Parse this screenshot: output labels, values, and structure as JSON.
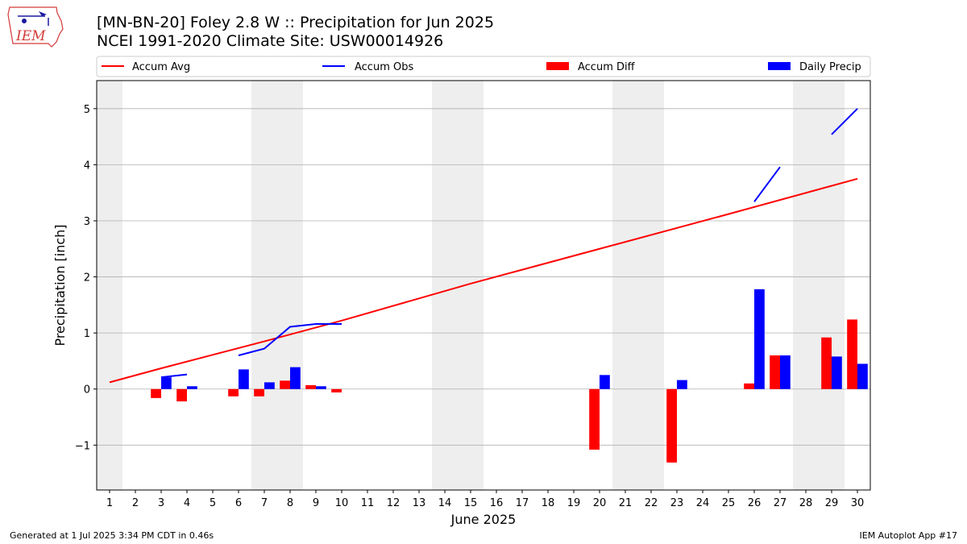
{
  "header": {
    "title_line1": "[MN-BN-20] Foley 2.8 W :: Precipitation for Jun 2025",
    "title_line2": "NCEI 1991-2020 Climate Site: USW00014926",
    "logo_text": "IEM"
  },
  "footer": {
    "generated": "Generated at 1 Jul 2025 3:34 PM CDT in 0.46s",
    "app": "IEM Autoplot App #17"
  },
  "colors": {
    "accum_avg": "#ff0000",
    "accum_obs": "#0000ff",
    "accum_diff": "#ff0000",
    "daily_precip": "#0000ff",
    "weekend_shade": "#eeeeee",
    "grid": "#b0b0b0"
  },
  "chart_data": {
    "type": "bar",
    "xlabel": "June 2025",
    "ylabel": "Precipitation [inch]",
    "ylim": [
      -1.8,
      5.5
    ],
    "xlim": [
      0.5,
      30.5
    ],
    "yticks": [
      -1,
      0,
      1,
      2,
      3,
      4,
      5
    ],
    "ytick_labels": [
      "−1",
      "0",
      "1",
      "2",
      "3",
      "4",
      "5"
    ],
    "xticks": [
      1,
      2,
      3,
      4,
      5,
      6,
      7,
      8,
      9,
      10,
      11,
      12,
      13,
      14,
      15,
      16,
      17,
      18,
      19,
      20,
      21,
      22,
      23,
      24,
      25,
      26,
      27,
      28,
      29,
      30
    ],
    "grid": "horizontal",
    "legend_position": "top",
    "legend": [
      "Accum Avg",
      "Accum Obs",
      "Accum Diff",
      "Daily Precip"
    ],
    "weekend_days": [
      1,
      7,
      8,
      14,
      15,
      21,
      22,
      28,
      29
    ],
    "accum_avg": {
      "name": "Accum Avg",
      "x": [
        1,
        3,
        7,
        10,
        15,
        20,
        25,
        30
      ],
      "y": [
        0.12,
        0.37,
        0.85,
        1.22,
        1.88,
        2.5,
        3.12,
        3.75
      ]
    },
    "accum_obs": {
      "name": "Accum Obs",
      "segments": [
        {
          "x": [
            3,
            4
          ],
          "y": [
            0.21,
            0.26
          ]
        },
        {
          "x": [
            6,
            7,
            8,
            9,
            10
          ],
          "y": [
            0.6,
            0.72,
            1.11,
            1.16,
            1.16
          ]
        },
        {
          "x": [
            26,
            27
          ],
          "y": [
            3.34,
            3.96
          ]
        },
        {
          "x": [
            29,
            30
          ],
          "y": [
            4.54,
            5.0
          ]
        }
      ]
    },
    "accum_diff": {
      "name": "Accum Diff",
      "x": [
        3,
        4,
        6,
        7,
        8,
        9,
        10,
        20,
        23,
        26,
        27,
        29,
        30
      ],
      "y": [
        -0.16,
        -0.22,
        -0.13,
        -0.13,
        0.15,
        0.07,
        -0.06,
        -1.08,
        -1.31,
        0.1,
        0.6,
        0.92,
        1.24
      ]
    },
    "daily_precip": {
      "name": "Daily Precip",
      "x": [
        3,
        4,
        6,
        7,
        8,
        9,
        20,
        23,
        26,
        27,
        29,
        30
      ],
      "y": [
        0.21,
        0.05,
        0.35,
        0.12,
        0.39,
        0.05,
        0.25,
        0.16,
        1.78,
        0.6,
        0.58,
        0.45
      ]
    }
  }
}
